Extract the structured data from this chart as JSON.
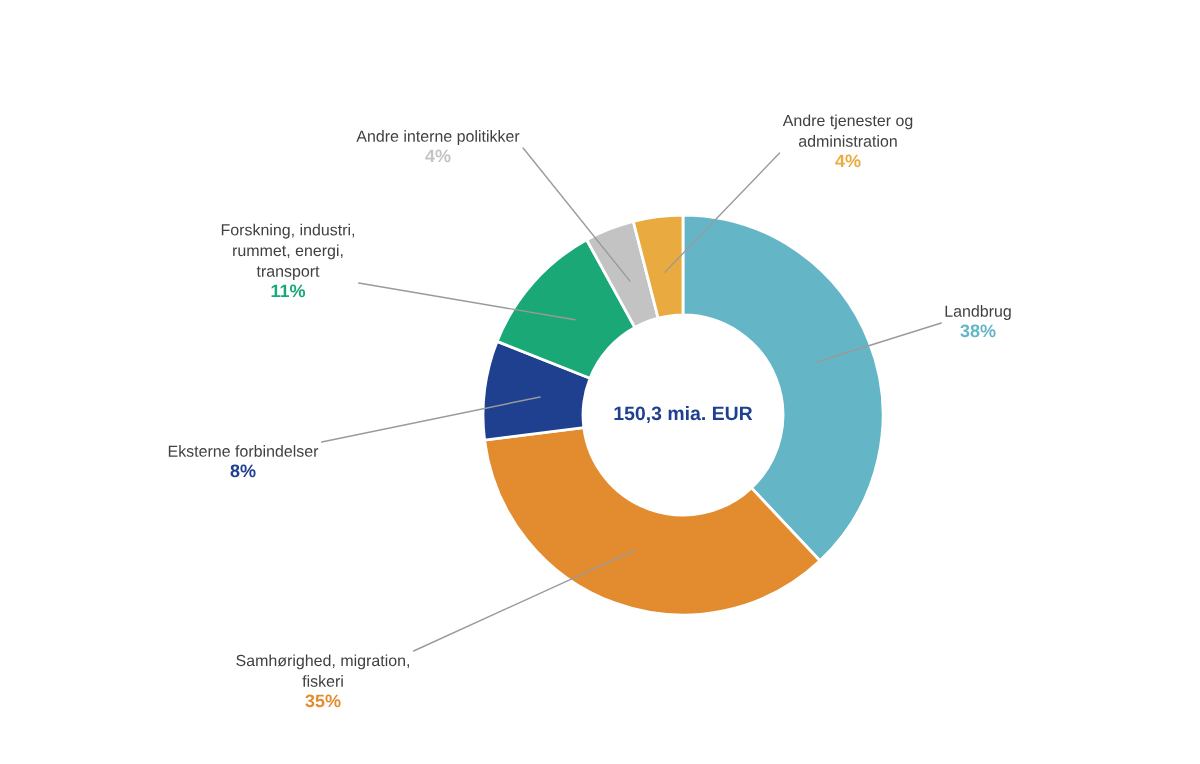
{
  "chart_data": {
    "type": "donut",
    "categories": [
      "Landbrug",
      "Samhørighed, migration,\nfiskeri",
      "Eksterne forbindelser",
      "Forskning, industri,\nrummet, energi,\ntransport",
      "Andre interne politikker",
      "Andre tjenester og\nadministration"
    ],
    "values": [
      38,
      35,
      8,
      11,
      4,
      4
    ],
    "colors": [
      "#64b6c6",
      "#e38b2f",
      "#1f3f8f",
      "#1ba877",
      "#c3c3c3",
      "#e9ab3f"
    ],
    "value_labels": [
      "38%",
      "35%",
      "8%",
      "11%",
      "4%",
      "4%"
    ],
    "annotations": [
      {
        "text": "150,3 mia. EUR"
      }
    ],
    "legend": false
  }
}
